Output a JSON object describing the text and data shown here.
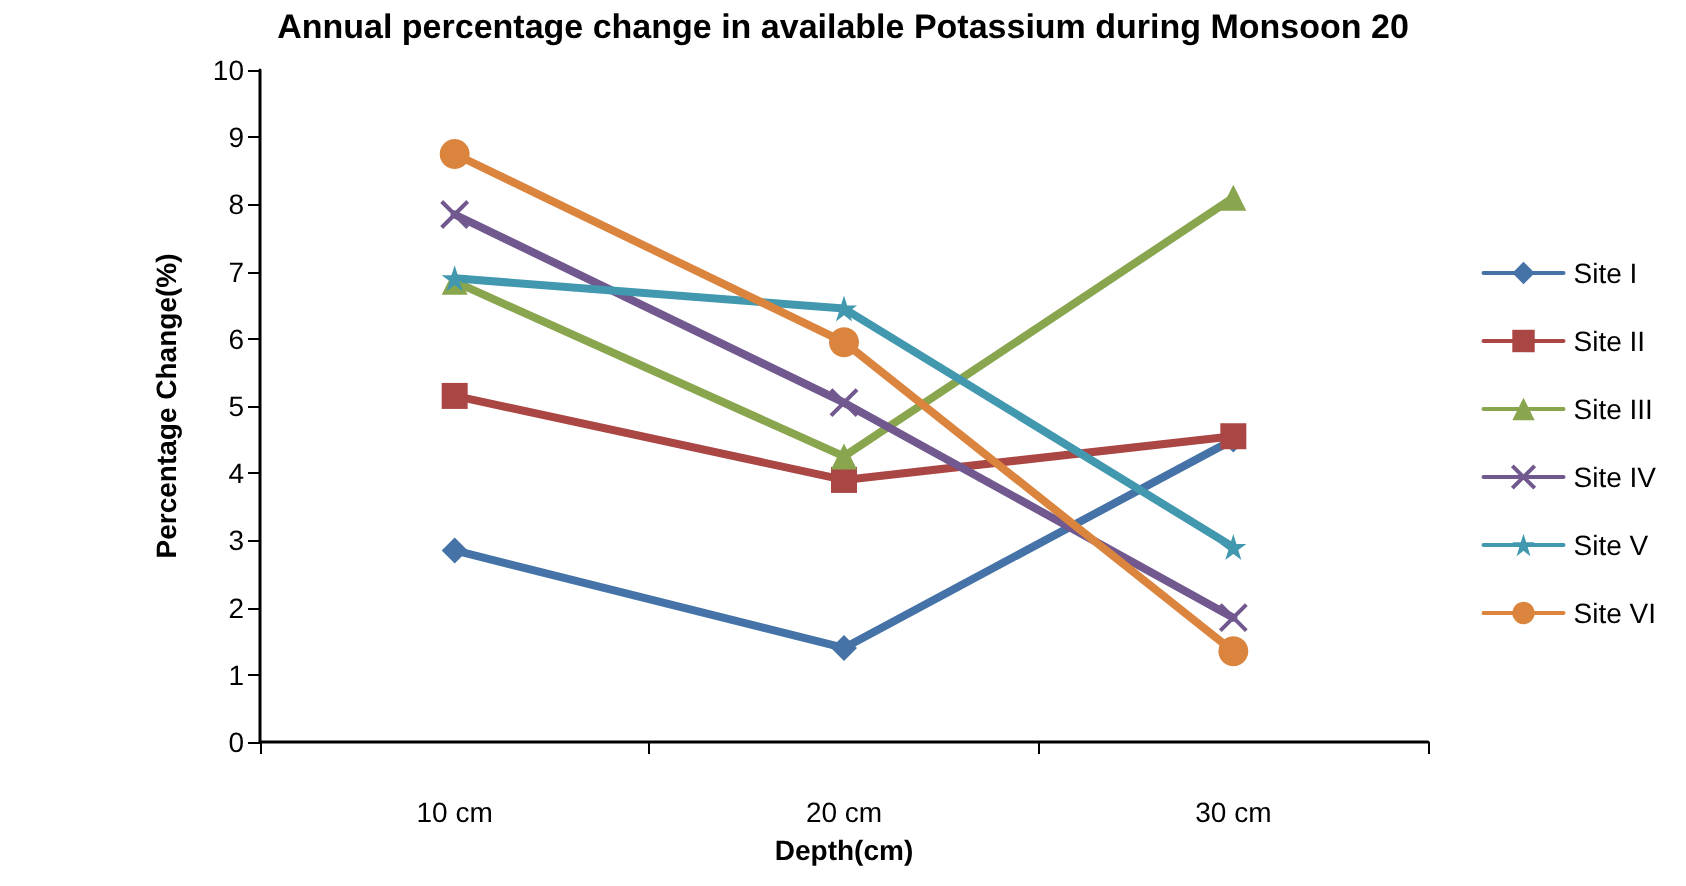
{
  "chart_data": {
    "type": "line",
    "title": "Annual percentage change in available Potassium during Monsoon 20",
    "xlabel": "Depth(cm)",
    "ylabel": "Percentage Change(%)",
    "categories": [
      "10 cm",
      "20 cm",
      "30 cm"
    ],
    "series": [
      {
        "name": "Site I",
        "color": "#4572a7",
        "marker": "diamond",
        "values": [
          2.85,
          1.4,
          4.5
        ]
      },
      {
        "name": "Site II",
        "color": "#aa4643",
        "marker": "square",
        "values": [
          5.15,
          3.9,
          4.55
        ]
      },
      {
        "name": "Site III",
        "color": "#89a54e",
        "marker": "triangle",
        "values": [
          6.85,
          4.25,
          8.1
        ]
      },
      {
        "name": "Site IV",
        "color": "#71588f",
        "marker": "cross",
        "values": [
          7.85,
          5.05,
          1.85
        ]
      },
      {
        "name": "Site V",
        "color": "#4198af",
        "marker": "star",
        "values": [
          6.9,
          6.45,
          2.9
        ]
      },
      {
        "name": "Site VI",
        "color": "#db843d",
        "marker": "circle",
        "values": [
          8.75,
          5.95,
          1.35
        ]
      }
    ],
    "ylim": [
      0,
      10
    ],
    "yticks": [
      0,
      1,
      2,
      3,
      4,
      5,
      6,
      7,
      8,
      9,
      10
    ],
    "grid": false,
    "legend": "right",
    "line_style": "solid"
  }
}
